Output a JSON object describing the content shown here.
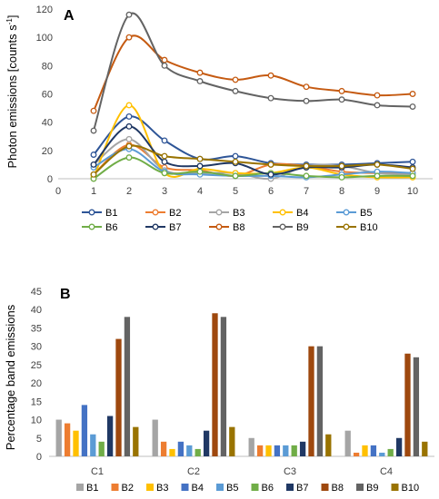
{
  "chart_data": [
    {
      "type": "line",
      "panel_label": "A",
      "ylabel": "Photon emissions [counts s-1]",
      "ylabel_main": "Photon emissions [counts s",
      "ylabel_sup": "-1",
      "ylabel_end": "]",
      "xlim": [
        0,
        10
      ],
      "ylim": [
        0,
        120
      ],
      "x_ticks": [
        0,
        1,
        2,
        3,
        4,
        5,
        6,
        7,
        8,
        9,
        10
      ],
      "y_ticks": [
        0,
        20,
        40,
        60,
        80,
        100,
        120
      ],
      "x": [
        1,
        2,
        3,
        4,
        5,
        6,
        7,
        8,
        9,
        10
      ],
      "grid": false,
      "legend_position": "bottom",
      "series": [
        {
          "name": "B1",
          "color": "#2e5597",
          "values": [
            17,
            44,
            27,
            14,
            16,
            11,
            10,
            10,
            11,
            12
          ]
        },
        {
          "name": "B2",
          "color": "#ed7d31",
          "values": [
            3,
            24,
            8,
            6,
            2,
            10,
            9,
            5,
            4,
            4
          ]
        },
        {
          "name": "B3",
          "color": "#a5a5a5",
          "values": [
            10,
            28,
            6,
            4,
            4,
            0,
            9,
            9,
            4,
            3
          ]
        },
        {
          "name": "B4",
          "color": "#ffc000",
          "values": [
            1,
            52,
            4,
            7,
            4,
            4,
            8,
            3,
            1,
            1
          ]
        },
        {
          "name": "B5",
          "color": "#5b9bd5",
          "values": [
            8,
            21,
            5,
            3,
            2,
            2,
            1,
            3,
            5,
            4
          ]
        },
        {
          "name": "B6",
          "color": "#70ad47",
          "values": [
            0,
            15,
            4,
            5,
            2,
            4,
            2,
            1,
            2,
            2
          ]
        },
        {
          "name": "B7",
          "color": "#203864",
          "values": [
            10,
            37,
            12,
            9,
            11,
            3,
            8,
            8,
            10,
            8
          ]
        },
        {
          "name": "B8",
          "color": "#c55a11",
          "values": [
            48,
            100,
            84,
            75,
            70,
            73,
            65,
            62,
            59,
            60
          ]
        },
        {
          "name": "B9",
          "color": "#636363",
          "values": [
            34,
            116,
            80,
            69,
            62,
            57,
            55,
            56,
            52,
            51
          ]
        },
        {
          "name": "B10",
          "color": "#997300",
          "values": [
            3,
            23,
            16,
            14,
            12,
            10,
            9,
            9,
            10,
            7
          ]
        }
      ]
    },
    {
      "type": "bar",
      "panel_label": "B",
      "ylabel": "Percentage band emissions",
      "categories": [
        "C1",
        "C2",
        "C3",
        "C4"
      ],
      "ylim": [
        0,
        45
      ],
      "y_ticks": [
        0,
        5,
        10,
        15,
        20,
        25,
        30,
        35,
        40,
        45
      ],
      "grid": false,
      "legend_position": "bottom",
      "series": [
        {
          "name": "B1",
          "color": "#a5a5a5",
          "values": [
            10,
            10,
            5,
            7
          ]
        },
        {
          "name": "B2",
          "color": "#ed7d31",
          "values": [
            9,
            4,
            3,
            1
          ]
        },
        {
          "name": "B3",
          "color": "#ffc000",
          "values": [
            7,
            2,
            3,
            3
          ]
        },
        {
          "name": "B4",
          "color": "#4472c4",
          "values": [
            14,
            4,
            3,
            3
          ]
        },
        {
          "name": "B5",
          "color": "#5b9bd5",
          "values": [
            6,
            3,
            3,
            1
          ]
        },
        {
          "name": "B6",
          "color": "#70ad47",
          "values": [
            4,
            2,
            3,
            2
          ]
        },
        {
          "name": "B7",
          "color": "#203864",
          "values": [
            11,
            7,
            4,
            5
          ]
        },
        {
          "name": "B8",
          "color": "#9e480e",
          "values": [
            32,
            39,
            30,
            28
          ]
        },
        {
          "name": "B9",
          "color": "#636363",
          "values": [
            38,
            38,
            30,
            27
          ]
        },
        {
          "name": "B10",
          "color": "#997300",
          "values": [
            8,
            8,
            6,
            4
          ]
        }
      ]
    }
  ]
}
